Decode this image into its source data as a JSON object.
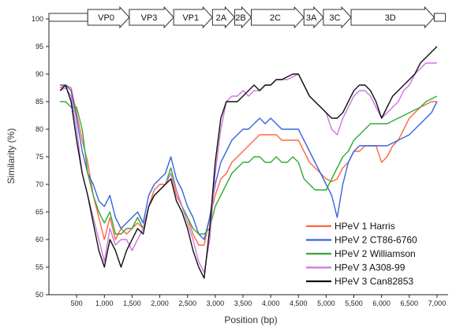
{
  "chart_data": {
    "type": "line",
    "title": "",
    "xlabel": "Position (bp)",
    "ylabel": "Similarity (%)",
    "xlim": [
      0,
      7200
    ],
    "ylim": [
      50,
      100
    ],
    "yticks": [
      50,
      55,
      60,
      65,
      70,
      75,
      80,
      85,
      90,
      95,
      100
    ],
    "yticks_labels": [
      "50",
      "55",
      "60",
      "65",
      "70",
      "75",
      "80",
      "85",
      "90",
      "95",
      "100"
    ],
    "xticks": [
      500,
      1000,
      1500,
      2000,
      2500,
      3000,
      3500,
      4000,
      4500,
      5000,
      5500,
      6000,
      6500,
      7000
    ],
    "xticks_labels": [
      "500",
      "1,000",
      "1,500",
      "2,000",
      "2,500",
      "3,000",
      "3,500",
      "4,000",
      "4,500",
      "5,000",
      "5,500",
      "6,000",
      "6,500",
      "7,000"
    ],
    "grid": false,
    "legend_position": "bottom-right",
    "genome_map": [
      {
        "label": "",
        "start": 0,
        "end": 700,
        "arrow": false
      },
      {
        "label": "VP0",
        "start": 700,
        "end": 1450,
        "arrow": true
      },
      {
        "label": "VP3",
        "start": 1450,
        "end": 2250,
        "arrow": true
      },
      {
        "label": "VP1",
        "start": 2250,
        "end": 2950,
        "arrow": true
      },
      {
        "label": "2A",
        "start": 2950,
        "end": 3350,
        "arrow": true
      },
      {
        "label": "2B",
        "start": 3350,
        "end": 3650,
        "arrow": true
      },
      {
        "label": "2C",
        "start": 3650,
        "end": 4600,
        "arrow": true
      },
      {
        "label": "3A",
        "start": 4600,
        "end": 4950,
        "arrow": true
      },
      {
        "label": "3C",
        "start": 4950,
        "end": 5450,
        "arrow": true
      },
      {
        "label": "3D",
        "start": 5450,
        "end": 6950,
        "arrow": true
      },
      {
        "label": "",
        "start": 6950,
        "end": 7150,
        "arrow": false
      }
    ],
    "x": [
      200,
      300,
      400,
      500,
      600,
      700,
      800,
      900,
      1000,
      1100,
      1200,
      1300,
      1400,
      1500,
      1600,
      1700,
      1800,
      1900,
      2000,
      2100,
      2200,
      2300,
      2400,
      2500,
      2600,
      2700,
      2800,
      2900,
      3000,
      3100,
      3200,
      3300,
      3400,
      3500,
      3600,
      3700,
      3800,
      3900,
      4000,
      4100,
      4200,
      4300,
      4400,
      4500,
      4600,
      4700,
      4800,
      4900,
      5000,
      5100,
      5200,
      5300,
      5400,
      5500,
      5600,
      5700,
      5800,
      5900,
      6000,
      6100,
      6200,
      6300,
      6400,
      6500,
      6600,
      6700,
      6800,
      6900,
      7000
    ],
    "series": [
      {
        "name": "HPeV 1 Harris",
        "color": "#ff6640",
        "values": [
          87.5,
          88,
          87.5,
          83,
          78,
          74,
          68,
          64,
          60,
          64,
          60,
          62,
          61,
          62,
          63,
          62,
          66,
          69,
          70,
          70,
          72,
          68,
          66,
          64,
          61,
          59,
          59,
          64,
          68,
          71,
          72,
          74,
          75,
          76,
          77,
          78,
          79,
          79,
          79,
          79,
          78,
          78,
          78,
          78,
          76,
          74,
          73,
          72,
          71,
          70.5,
          71,
          73,
          74,
          76,
          76,
          77,
          77,
          77,
          74,
          75,
          77,
          78,
          80,
          82,
          83,
          84,
          84.5,
          85,
          85
        ]
      },
      {
        "name": "HPeV 2 CT86-6760",
        "color": "#3366dd",
        "values": [
          88,
          88,
          87,
          82,
          76,
          72,
          70,
          67,
          66,
          68,
          64,
          62,
          63,
          64,
          65,
          63,
          68,
          70,
          71,
          72,
          75,
          71,
          69,
          66,
          64,
          61,
          60,
          64,
          70,
          74,
          76,
          78,
          79,
          80,
          80,
          81,
          82,
          81,
          82,
          81,
          80,
          80,
          80,
          80,
          78,
          76,
          74,
          72,
          70,
          68,
          64,
          70,
          74,
          76,
          77,
          77,
          77,
          77,
          77,
          77,
          77.5,
          78,
          78.5,
          79,
          80,
          81,
          82,
          83,
          85
        ]
      },
      {
        "name": "HPeV 2 Williamson",
        "color": "#33aa33",
        "values": [
          85,
          85,
          84,
          84,
          80,
          72,
          68,
          65,
          63,
          65,
          61,
          61,
          62,
          62,
          64,
          62,
          66,
          68,
          69,
          70,
          73,
          69,
          66,
          64,
          62,
          61,
          61,
          62,
          66,
          68,
          70,
          72,
          73,
          74,
          74,
          75,
          75,
          74,
          74,
          75,
          74,
          74,
          75,
          74,
          71,
          70,
          69,
          69,
          69,
          71,
          73,
          75,
          76,
          78,
          79,
          80,
          81,
          81,
          81,
          81,
          81.5,
          82,
          82.5,
          83,
          83.5,
          84,
          85,
          85.5,
          86
        ]
      },
      {
        "name": "HPeV 3 A308-99",
        "color": "#cc77dd",
        "values": [
          87,
          87.5,
          86,
          80,
          72,
          68,
          64,
          60,
          56,
          62,
          59,
          60,
          60,
          58,
          60,
          62,
          66,
          68,
          69,
          70,
          72,
          69,
          66,
          63,
          60,
          56,
          54,
          60,
          72,
          80,
          85,
          86,
          86,
          87,
          86,
          87,
          87,
          88,
          88,
          89,
          89,
          89,
          89.5,
          90,
          88,
          86,
          85,
          84,
          83,
          80,
          79,
          82,
          84,
          86,
          87,
          87,
          86,
          84,
          82,
          83,
          84,
          85,
          87,
          88,
          90,
          91,
          92,
          92,
          92
        ]
      },
      {
        "name": "HPeV 3 Can82853",
        "color": "#111111",
        "values": [
          87,
          88,
          85,
          78,
          72,
          68,
          63,
          58,
          55,
          60,
          58,
          55,
          58,
          60,
          62,
          61,
          66,
          68,
          69,
          70,
          71,
          67,
          65,
          62,
          58,
          55,
          53,
          62,
          74,
          82,
          85,
          85,
          85,
          86,
          87,
          88,
          87,
          88,
          88,
          89,
          89,
          89.5,
          90,
          90,
          88,
          86,
          85,
          84,
          83,
          82,
          82,
          83,
          85,
          87,
          88,
          88,
          87,
          85,
          82,
          84,
          86,
          87,
          88,
          89,
          90,
          92,
          93,
          94,
          95
        ]
      }
    ]
  }
}
